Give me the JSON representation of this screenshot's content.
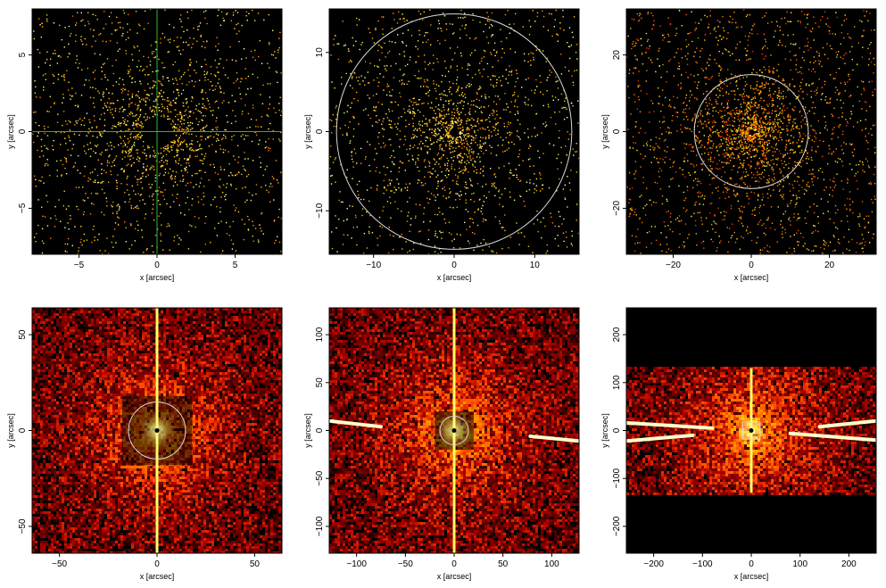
{
  "figure": {
    "panel_count": 6,
    "colormap": "heat",
    "background_color": "#000000",
    "overlay_circle_color": "#d8d8d8",
    "crosshair_color": "#2fb52f"
  },
  "chart_data": [
    {
      "type": "heatmap",
      "xlabel": "x [arcsec]",
      "ylabel": "y [arcsec]",
      "xlim": [
        -8,
        8
      ],
      "ylim": [
        -8,
        8
      ],
      "xticks": [
        -5,
        0,
        5
      ],
      "yticks": [
        -5,
        0,
        5
      ],
      "overlay": {
        "kind": "crosshair",
        "x": 0,
        "y": 0
      },
      "density": "sparse",
      "central_hole_radius": 1
    },
    {
      "type": "heatmap",
      "xlabel": "x [arcsec]",
      "ylabel": "y [arcsec]",
      "xlim": [
        -15.5,
        15.5
      ],
      "ylim": [
        -15.5,
        15.5
      ],
      "xticks": [
        -10,
        0,
        10
      ],
      "yticks": [
        -10,
        0,
        10
      ],
      "overlay": {
        "kind": "circle",
        "x": 0,
        "y": 0,
        "r": 14.6
      },
      "density": "sparse",
      "central_hole_radius": 0.6
    },
    {
      "type": "heatmap",
      "xlabel": "x [arcsec]",
      "ylabel": "y [arcsec]",
      "xlim": [
        -32,
        32
      ],
      "ylim": [
        -32,
        32
      ],
      "xticks": [
        -20,
        0,
        20
      ],
      "yticks": [
        -20,
        0,
        20
      ],
      "overlay": {
        "kind": "circle",
        "x": 0,
        "y": 0,
        "r": 14.6
      },
      "density": "medium",
      "central_hole_radius": 0.8
    },
    {
      "type": "heatmap",
      "xlabel": "x [arcsec]",
      "ylabel": "y [arcsec]",
      "xlim": [
        -64,
        64
      ],
      "ylim": [
        -64,
        64
      ],
      "xticks": [
        -50,
        0,
        50
      ],
      "yticks": [
        -50,
        0,
        50
      ],
      "overlay": {
        "kind": "circle",
        "x": 0,
        "y": 0,
        "r": 14.6
      },
      "density": "dense",
      "inner_box_halfwidth": 18,
      "readout_streak": true
    },
    {
      "type": "heatmap",
      "xlabel": "x [arcsec]",
      "ylabel": "y [arcsec]",
      "xlim": [
        -128,
        128
      ],
      "ylim": [
        -128,
        128
      ],
      "xticks": [
        -100,
        -50,
        0,
        50,
        100
      ],
      "yticks": [
        -100,
        -50,
        0,
        50,
        100
      ],
      "overlay": {
        "kind": "circle",
        "x": 0,
        "y": 0,
        "r": 14.6
      },
      "density": "dense",
      "inner_box_halfwidth": 20,
      "readout_streak": true,
      "spikes": [
        {
          "x1": -128,
          "y1": 10,
          "x2": -75,
          "y2": 4
        },
        {
          "x1": 128,
          "y1": -11,
          "x2": 78,
          "y2": -6
        }
      ]
    },
    {
      "type": "heatmap",
      "xlabel": "x [arcsec]",
      "ylabel": "y [arcsec]",
      "xlim": [
        -256,
        256
      ],
      "ylim": [
        -256,
        256
      ],
      "xticks": [
        -200,
        -100,
        0,
        100,
        200
      ],
      "yticks": [
        -200,
        -100,
        0,
        100,
        200
      ],
      "overlay": {
        "kind": "box",
        "x": 0,
        "y": 0,
        "halfwidth": 18
      },
      "density": "dense",
      "data_band_y": [
        -130,
        130
      ],
      "readout_streak": true,
      "spikes": [
        {
          "x1": -256,
          "y1": 16,
          "x2": -80,
          "y2": 5
        },
        {
          "x1": -256,
          "y1": -22,
          "x2": -120,
          "y2": -10
        },
        {
          "x1": 256,
          "y1": 20,
          "x2": 140,
          "y2": 8
        },
        {
          "x1": 256,
          "y1": -20,
          "x2": 80,
          "y2": -6
        }
      ]
    }
  ]
}
